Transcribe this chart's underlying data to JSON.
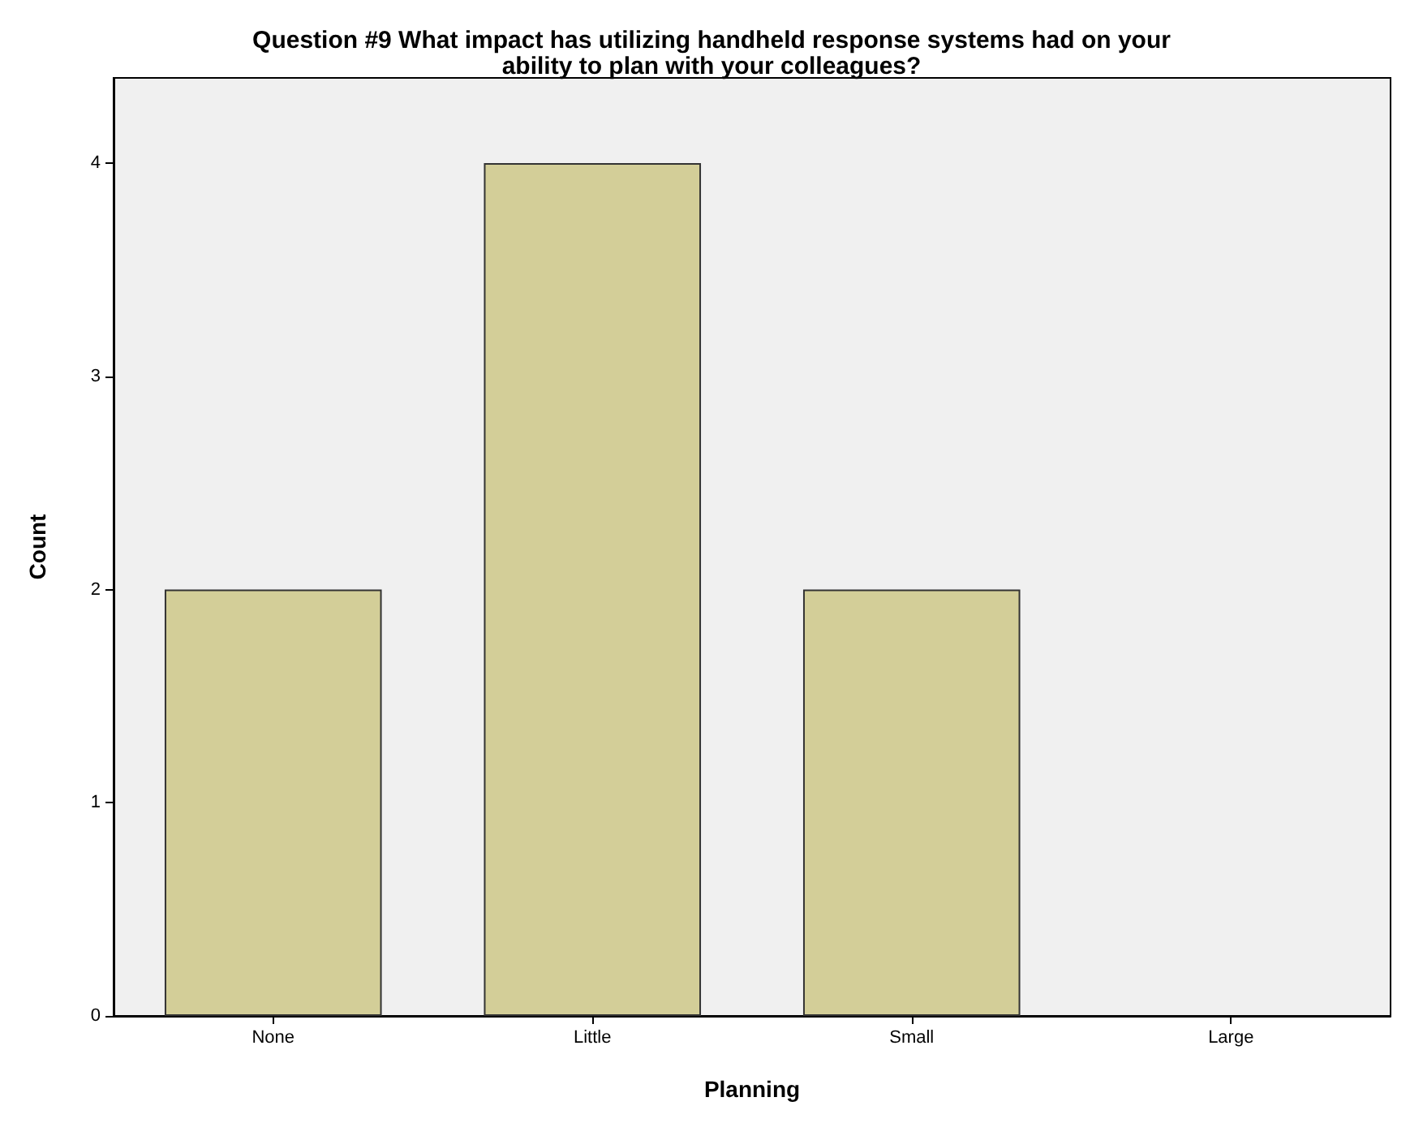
{
  "chart_data": {
    "type": "bar",
    "title": "Question #9 What impact has utilizing handheld response systems had on your\nability to plan with your colleagues?",
    "xlabel": "Planning",
    "ylabel": "Count",
    "categories": [
      "None",
      "Little",
      "Small",
      "Large"
    ],
    "values": [
      2,
      4,
      2,
      0
    ],
    "color": "#d3ce98",
    "ylim": [
      0,
      4.4
    ],
    "yticks": [
      0,
      1,
      2,
      3,
      4
    ],
    "grid": false
  }
}
